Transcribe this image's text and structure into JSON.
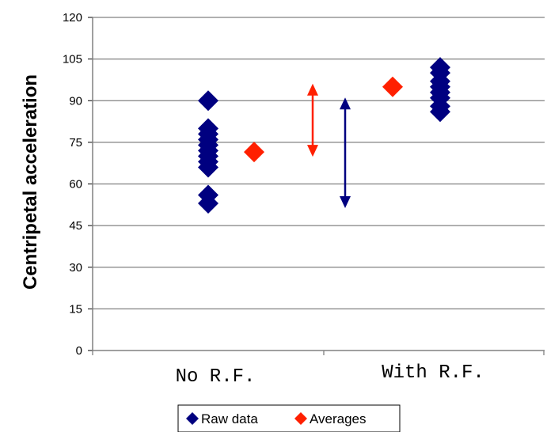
{
  "chart_data": {
    "type": "scatter",
    "title": "",
    "xlabel": "",
    "ylabel": "Centripetal acceleration",
    "ylim": [
      0,
      120
    ],
    "yticks": [
      0,
      15,
      30,
      45,
      60,
      75,
      90,
      105,
      120
    ],
    "categories": [
      "No R.F.",
      "With R.F."
    ],
    "grid": true,
    "legend_position": "bottom",
    "series": [
      {
        "name": "Raw data",
        "color": "#000080",
        "marker": "diamond",
        "points": [
          {
            "category": "No R.F.",
            "y": 90
          },
          {
            "category": "No R.F.",
            "y": 80
          },
          {
            "category": "No R.F.",
            "y": 78
          },
          {
            "category": "No R.F.",
            "y": 76
          },
          {
            "category": "No R.F.",
            "y": 74
          },
          {
            "category": "No R.F.",
            "y": 72
          },
          {
            "category": "No R.F.",
            "y": 70
          },
          {
            "category": "No R.F.",
            "y": 68
          },
          {
            "category": "No R.F.",
            "y": 66
          },
          {
            "category": "No R.F.",
            "y": 56
          },
          {
            "category": "No R.F.",
            "y": 53
          },
          {
            "category": "With R.F.",
            "y": 102
          },
          {
            "category": "With R.F.",
            "y": 100
          },
          {
            "category": "With R.F.",
            "y": 97
          },
          {
            "category": "With R.F.",
            "y": 95
          },
          {
            "category": "With R.F.",
            "y": 93
          },
          {
            "category": "With R.F.",
            "y": 91
          },
          {
            "category": "With R.F.",
            "y": 88
          },
          {
            "category": "With R.F.",
            "y": 86
          }
        ]
      },
      {
        "name": "Averages",
        "color": "#ff2000",
        "marker": "diamond",
        "points": [
          {
            "category": "No R.F.",
            "y": 71.5
          },
          {
            "category": "With R.F.",
            "y": 95
          }
        ]
      }
    ],
    "arrows": [
      {
        "color": "#ff2000",
        "y_range": [
          71.5,
          95
        ]
      },
      {
        "color": "#000080",
        "y_range": [
          53,
          90
        ]
      }
    ]
  }
}
